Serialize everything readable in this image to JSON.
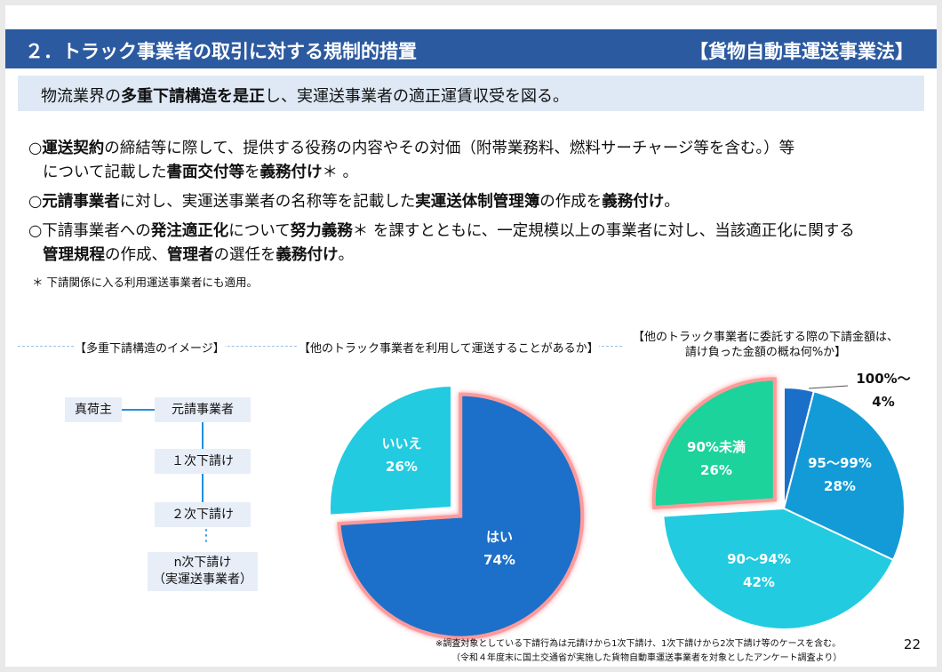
{
  "header": {
    "title": "２．トラック事業者の取引に対する規制的措置",
    "law": "【貨物自動車運送事業法】"
  },
  "summary": {
    "pre": "物流業界の",
    "bold": "多重下請構造を是正",
    "post": "し、実運送事業者の適正運賃収受を図る。"
  },
  "bullets": {
    "b1": {
      "p1": "○",
      "b1": "運送契約",
      "p2": "の締結等に際して、提供する役務の内容やその対価（附帯業務料、燃料サーチャージ等を含む。）等",
      "p3": "について記載した",
      "b2": "書面交付等",
      "p4": "を",
      "b3": "義務付け",
      "p5": "＊ 。"
    },
    "b2": {
      "p1": "○",
      "b1": "元請事業者",
      "p2": "に対し、実運送事業者の名称等を記載した",
      "b2": "実運送体制管理簿",
      "p3": "の作成を",
      "b3": "義務付け",
      "p4": "。"
    },
    "b3": {
      "p1": "○下請事業者への",
      "b1": "発注適正化",
      "p2": "について",
      "b2": "努力義務",
      "p3": "＊ を課すとともに、一定規模以上の事業者に対し、当該適正化に関する",
      "b3": "管理規程",
      "p4": "の作成、",
      "b4": "管理者",
      "p5": "の選任を",
      "b5": "義務付け",
      "p6": "。"
    },
    "note": "＊ 下請関係に入る利用運送事業者にも適用。"
  },
  "structure": {
    "label": "【多重下請構造のイメージ】",
    "shipper": "真荷主",
    "prime": "元請事業者",
    "sub1": "１次下請け",
    "sub2": "２次下請け",
    "dots": "⋮",
    "subn_line1": "n次下請け",
    "subn_line2": "（実運送事業者）"
  },
  "chart_data": [
    {
      "type": "pie",
      "title": "【他のトラック事業者を利用して運送することがあるか】",
      "slices": [
        {
          "label": "はい",
          "value": 74,
          "value_label": "74%",
          "color": "#1a6fc9",
          "exploded": true
        },
        {
          "label": "いいえ",
          "value": 26,
          "value_label": "26%",
          "color": "#22cbe0",
          "exploded": false
        }
      ]
    },
    {
      "type": "pie",
      "title_line1": "【他のトラック事業者に委託する際の下請金額は、",
      "title_line2": "請け負った金額の概ね何%か】",
      "slices": [
        {
          "label": "100%～",
          "value": 4,
          "value_label": "4%",
          "color": "#1a6fc9",
          "exploded": false
        },
        {
          "label": "95～99%",
          "value": 28,
          "value_label": "28%",
          "color": "#139bd8",
          "exploded": false
        },
        {
          "label": "90～94%",
          "value": 42,
          "value_label": "42%",
          "color": "#22cbe0",
          "exploded": false
        },
        {
          "label": "90%未満",
          "value": 26,
          "value_label": "26%",
          "color": "#1fd39b",
          "exploded": true
        }
      ]
    }
  ],
  "footnote": {
    "line1": "※調査対象としている下請行為は元請けから1次下請け、1次下請けから2次下請け等のケースを含む。",
    "line2": "（令和４年度末に国土交通省が実施した貨物自動車運送事業者を対象としたアンケート調査より）"
  },
  "page_number": "22"
}
